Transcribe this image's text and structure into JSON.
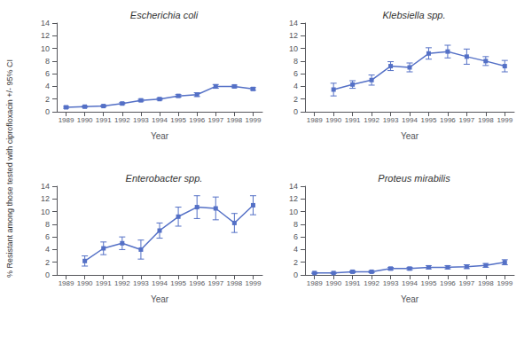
{
  "chart_data": [
    {
      "type": "line",
      "title": "Escherichia coli",
      "xlabel": "Year",
      "ylabel": "% Resistant among those tested with ciprofloxacin +/- 95% CI",
      "x": [
        1989,
        1990,
        1991,
        1992,
        1993,
        1994,
        1995,
        1996,
        1997,
        1998,
        1999
      ],
      "values": [
        0.7,
        0.8,
        0.9,
        1.3,
        1.8,
        2.0,
        2.5,
        2.7,
        4.0,
        4.0,
        3.6
      ],
      "errors": [
        0.15,
        0.1,
        0.1,
        0.15,
        0.15,
        0.15,
        0.2,
        0.3,
        0.3,
        0.2,
        0.2
      ],
      "xlim": [
        1988.5,
        1999.5
      ],
      "xticks": [
        1989,
        1990,
        1991,
        1992,
        1993,
        1994,
        1995,
        1996,
        1997,
        1998,
        1999
      ],
      "ylim": [
        0,
        14
      ],
      "yticks": [
        0,
        2,
        4,
        6,
        8,
        10,
        12,
        14
      ],
      "marker": "square",
      "grid": false
    },
    {
      "type": "line",
      "title": "Klebsiella spp.",
      "xlabel": "Year",
      "x": [
        1989,
        1990,
        1991,
        1992,
        1993,
        1994,
        1995,
        1996,
        1997,
        1998,
        1999
      ],
      "values": [
        null,
        3.5,
        4.3,
        5.0,
        7.2,
        7.0,
        9.2,
        9.5,
        8.7,
        8.0,
        7.2
      ],
      "errors": [
        null,
        1.0,
        0.6,
        0.8,
        0.7,
        0.7,
        0.9,
        1.0,
        1.2,
        0.7,
        0.9
      ],
      "xlim": [
        1988.5,
        1999.5
      ],
      "xticks": [
        1989,
        1990,
        1991,
        1992,
        1993,
        1994,
        1995,
        1996,
        1997,
        1998,
        1999
      ],
      "ylim": [
        0,
        14
      ],
      "yticks": [
        0,
        2,
        4,
        6,
        8,
        10,
        12,
        14
      ],
      "marker": "square",
      "grid": false
    },
    {
      "type": "line",
      "title": "Enterobacter spp.",
      "xlabel": "Year",
      "x": [
        1989,
        1990,
        1991,
        1992,
        1993,
        1994,
        1995,
        1996,
        1997,
        1998,
        1999
      ],
      "values": [
        null,
        2.2,
        4.2,
        5.0,
        4.0,
        7.0,
        9.2,
        10.7,
        10.5,
        8.2,
        11.0
      ],
      "errors": [
        null,
        0.8,
        1.0,
        1.0,
        1.5,
        1.2,
        1.5,
        1.8,
        1.8,
        1.5,
        1.5
      ],
      "xlim": [
        1988.5,
        1999.5
      ],
      "xticks": [
        1989,
        1990,
        1991,
        1992,
        1993,
        1994,
        1995,
        1996,
        1997,
        1998,
        1999
      ],
      "ylim": [
        0,
        14
      ],
      "yticks": [
        0,
        2,
        4,
        6,
        8,
        10,
        12,
        14
      ],
      "marker": "square",
      "grid": false
    },
    {
      "type": "line",
      "title": "Proteus mirabilis",
      "xlabel": "Year",
      "x": [
        1989,
        1990,
        1991,
        1992,
        1993,
        1994,
        1995,
        1996,
        1997,
        1998,
        1999
      ],
      "values": [
        0.3,
        0.3,
        0.5,
        0.5,
        1.0,
        1.0,
        1.2,
        1.2,
        1.3,
        1.5,
        2.0
      ],
      "errors": [
        0.1,
        0.1,
        0.15,
        0.15,
        0.2,
        0.2,
        0.25,
        0.25,
        0.3,
        0.3,
        0.4
      ],
      "xlim": [
        1988.5,
        1999.5
      ],
      "xticks": [
        1989,
        1990,
        1991,
        1992,
        1993,
        1994,
        1995,
        1996,
        1997,
        1998,
        1999
      ],
      "ylim": [
        0,
        14
      ],
      "yticks": [
        0,
        2,
        4,
        6,
        8,
        10,
        12,
        14
      ],
      "marker": "square",
      "grid": false
    }
  ]
}
